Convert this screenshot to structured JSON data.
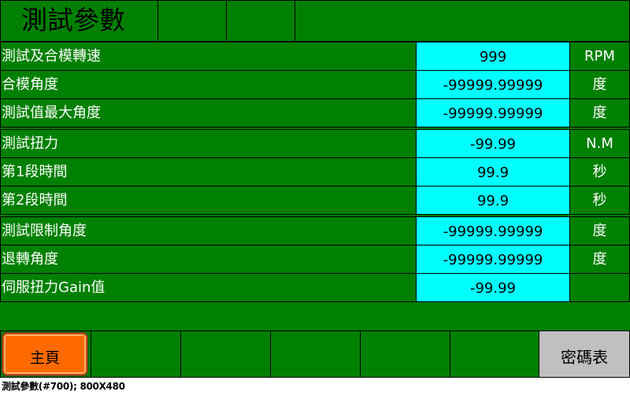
{
  "header": {
    "title": "測試參數"
  },
  "params": [
    {
      "label": "測試及合模轉速",
      "value": "999",
      "unit": "RPM"
    },
    {
      "label": "合模角度",
      "value": "-99999.99999",
      "unit": "度"
    },
    {
      "label": "測試值最大角度",
      "value": "-99999.99999",
      "unit": "度"
    },
    {
      "label": "測試扭力",
      "value": "-99.99",
      "unit": "N.M"
    },
    {
      "label": "第1段時間",
      "value": "99.9",
      "unit": "秒"
    },
    {
      "label": "第2段時間",
      "value": "99.9",
      "unit": "秒"
    },
    {
      "label": "測試限制角度",
      "value": "-99999.99999",
      "unit": "度"
    },
    {
      "label": "退轉角度",
      "value": "-99999.99999",
      "unit": "度"
    },
    {
      "label": "伺服扭力Gain值",
      "value": "-99.99",
      "unit": ""
    }
  ],
  "footer": {
    "home_label": "主頁",
    "password_label": "密碼表"
  },
  "caption": "測試參數(#700); 800X480",
  "colors": {
    "background": "#008000",
    "value_field": "#00ffff",
    "home_button": "#ff6a00",
    "password_button": "#c0c0c0"
  }
}
